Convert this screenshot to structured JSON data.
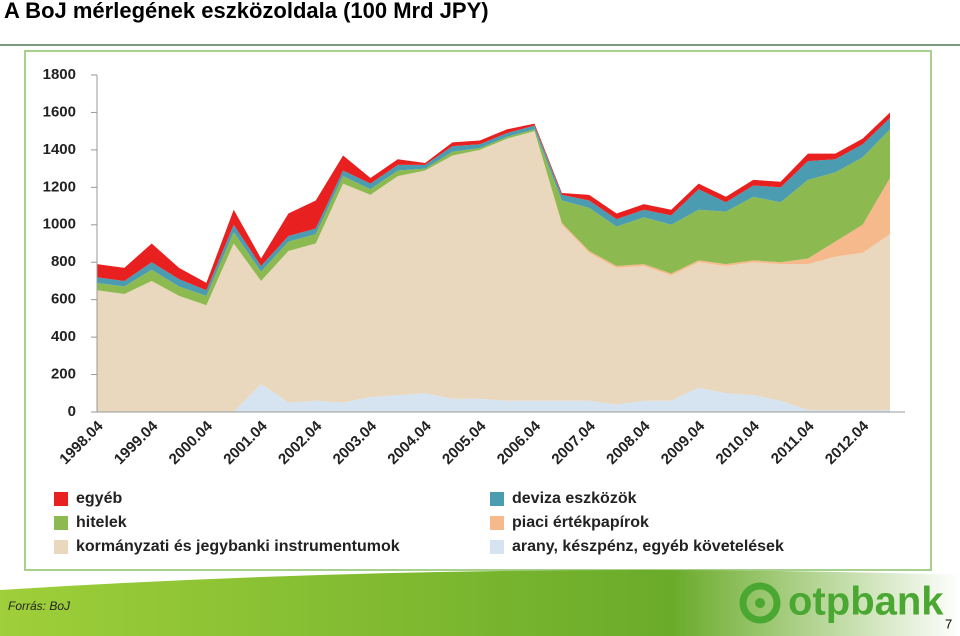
{
  "header": {
    "title": "A BoJ mérlegének eszközoldala (100 Mrd JPY)"
  },
  "chart_data": {
    "type": "stacked_area",
    "categories": [
      "1998.04",
      null,
      "1999.04",
      null,
      "2000.04",
      null,
      "2001.04",
      null,
      "2002.04",
      null,
      "2003.04",
      null,
      "2004.04",
      null,
      "2005.04",
      null,
      "2006.04",
      null,
      "2007.04",
      null,
      "2008.04",
      null,
      "2009.04",
      null,
      "2010.04",
      null,
      "2011.04",
      null,
      "2012.04",
      null
    ],
    "series": [
      {
        "name": "arany, készpénz, egyéb követelések",
        "color": "#d6e3f0",
        "values": [
          0,
          0,
          0,
          0,
          0,
          0,
          150,
          50,
          60,
          50,
          80,
          90,
          100,
          70,
          70,
          60,
          60,
          60,
          60,
          40,
          60,
          60,
          130,
          100,
          90,
          60,
          10,
          10,
          10,
          10
        ]
      },
      {
        "name": "kormányzati és jegybanki instrumentumok",
        "color": "#e9d8bd",
        "values": [
          650,
          630,
          700,
          620,
          570,
          900,
          550,
          810,
          840,
          1170,
          1080,
          1170,
          1190,
          1300,
          1330,
          1400,
          1440,
          940,
          790,
          730,
          720,
          670,
          670,
          680,
          710,
          730,
          780,
          820,
          840,
          940
        ]
      },
      {
        "name": "piaci értékpapírok",
        "color": "#f6b98c",
        "values": [
          0,
          0,
          0,
          0,
          0,
          0,
          0,
          0,
          0,
          0,
          0,
          0,
          0,
          0,
          0,
          0,
          0,
          10,
          10,
          10,
          10,
          10,
          10,
          10,
          10,
          10,
          30,
          80,
          150,
          300
        ]
      },
      {
        "name": "hitelek",
        "color": "#8dba50",
        "values": [
          40,
          40,
          60,
          50,
          50,
          60,
          50,
          50,
          50,
          40,
          30,
          30,
          10,
          20,
          10,
          10,
          10,
          120,
          230,
          210,
          250,
          260,
          270,
          280,
          340,
          320,
          420,
          370,
          360,
          260
        ]
      },
      {
        "name": "deviza eszközök",
        "color": "#4b9bb1",
        "values": [
          30,
          30,
          40,
          40,
          30,
          40,
          30,
          30,
          30,
          30,
          30,
          30,
          20,
          30,
          20,
          20,
          20,
          30,
          40,
          40,
          40,
          50,
          110,
          50,
          60,
          80,
          100,
          70,
          70,
          60
        ]
      },
      {
        "name": "egyéb",
        "color": "#e82020",
        "values": [
          70,
          70,
          100,
          60,
          40,
          80,
          40,
          120,
          150,
          80,
          30,
          30,
          10,
          20,
          20,
          20,
          10,
          10,
          30,
          30,
          30,
          30,
          30,
          30,
          30,
          30,
          40,
          30,
          30,
          30
        ]
      }
    ],
    "ylim": [
      0,
      1800
    ],
    "yticks": [
      0,
      200,
      400,
      600,
      800,
      1000,
      1200,
      1400,
      1600,
      1800
    ],
    "grid": false
  },
  "footer": {
    "source": "Forrás: BoJ",
    "logo": "otpbank",
    "page": "7"
  }
}
